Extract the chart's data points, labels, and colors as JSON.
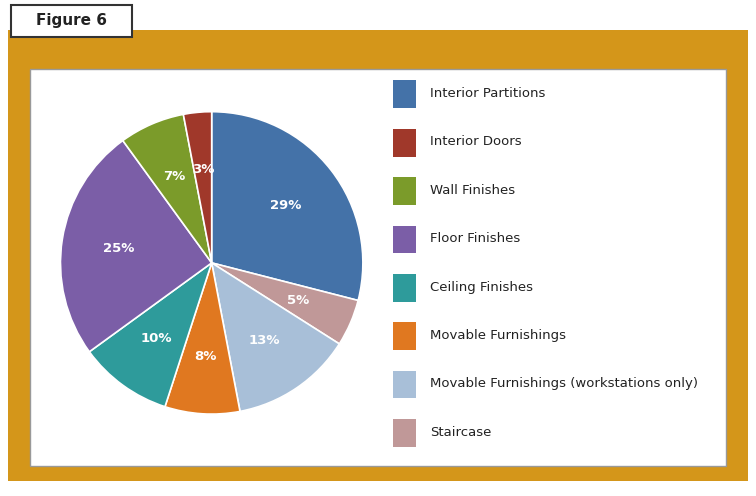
{
  "title": "Figure 6",
  "labels": [
    "Interior Partitions",
    "Interior Doors",
    "Wall Finishes",
    "Floor Finishes",
    "Ceiling Finishes",
    "Movable Furnishings",
    "Movable Furnishings (workstations only)",
    "Staircase"
  ],
  "values": [
    29,
    3,
    7,
    25,
    10,
    8,
    13,
    5
  ],
  "colors": [
    "#4472A8",
    "#A0382A",
    "#7B9B2A",
    "#7B5EA7",
    "#2E9B9B",
    "#E07820",
    "#A8BFD8",
    "#C09898"
  ],
  "pct_labels": [
    "29%",
    "3%",
    "7%",
    "25%",
    "10%",
    "8%",
    "13%",
    "5%"
  ],
  "gold_color": "#D4961A",
  "border_color": "#999999",
  "figure_bg": "#FFFFFF",
  "label_fontsize": 9.5,
  "pct_fontsize": 9.5
}
